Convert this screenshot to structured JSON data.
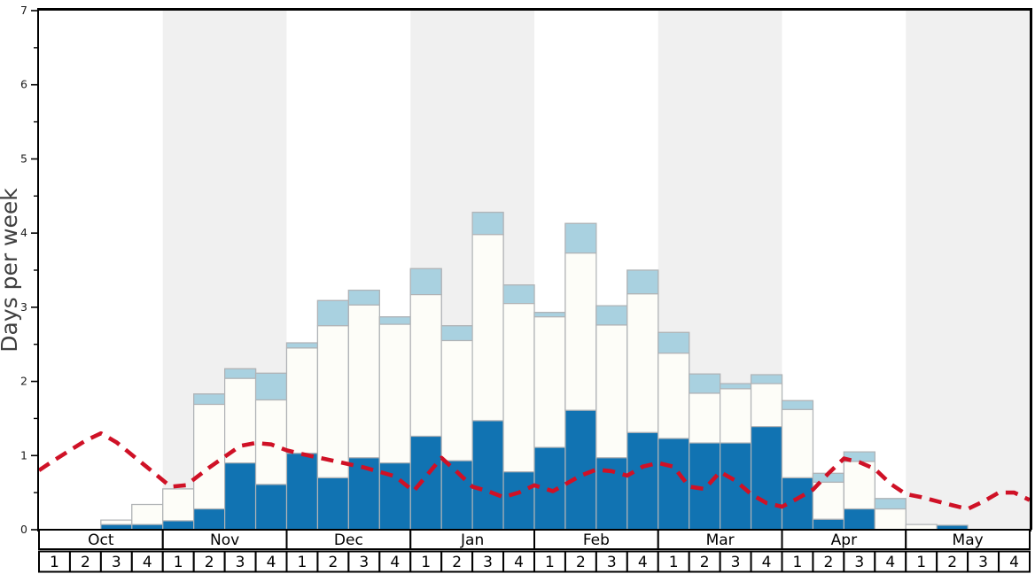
{
  "chart_data": {
    "type": "bar",
    "subtype": "stacked-weekly-bars-with-dashed-line",
    "title": "",
    "ylabel": "Days per week",
    "ylim": [
      0,
      7
    ],
    "y_major_ticks": [
      0,
      1,
      2,
      3,
      4,
      5,
      6,
      7
    ],
    "y_minor_tick_step": 0.5,
    "grid": "off",
    "legend": "none",
    "months": [
      "Oct",
      "Nov",
      "Dec",
      "Jan",
      "Feb",
      "Mar",
      "Apr",
      "May"
    ],
    "week_labels": [
      "1",
      "2",
      "3",
      "4"
    ],
    "weeks_per_month": 4,
    "shaded_month_indices": [
      1,
      3,
      5,
      7
    ],
    "bars": {
      "note": "cumulative tops in days-per-week for each of 32 weeks (Oct w1 .. May w4)",
      "dark_blue_top": [
        0,
        0,
        0.07,
        0.07,
        0.12,
        0.28,
        0.9,
        0.61,
        1.03,
        0.7,
        0.97,
        0.9,
        1.26,
        0.93,
        1.47,
        0.78,
        1.11,
        1.61,
        0.97,
        1.31,
        1.23,
        1.17,
        1.17,
        1.39,
        0.7,
        0.14,
        0.28,
        0,
        0,
        0.06,
        0,
        0
      ],
      "white_top": [
        0,
        0,
        0.13,
        0.34,
        0.55,
        1.69,
        2.04,
        1.75,
        2.45,
        2.75,
        3.03,
        2.77,
        3.17,
        2.55,
        3.98,
        3.05,
        2.87,
        3.73,
        2.76,
        3.18,
        2.38,
        1.84,
        1.9,
        1.97,
        1.62,
        0.64,
        0.92,
        0.28,
        0.07,
        0.06,
        0,
        0
      ],
      "light_blue_top": [
        0,
        0,
        0.13,
        0.34,
        0.55,
        1.83,
        2.17,
        2.11,
        2.52,
        3.09,
        3.23,
        2.87,
        3.52,
        2.75,
        4.28,
        3.3,
        2.93,
        4.13,
        3.02,
        3.5,
        2.66,
        2.1,
        1.97,
        2.09,
        1.74,
        0.76,
        1.05,
        0.42,
        0.07,
        0.06,
        0,
        0
      ]
    },
    "line": {
      "style": "dashed",
      "points_week_value": [
        [
          0,
          0.8
        ],
        [
          0.5,
          0.94
        ],
        [
          1.5,
          1.2
        ],
        [
          2.0,
          1.3
        ],
        [
          2.5,
          1.18
        ],
        [
          3.5,
          0.84
        ],
        [
          4.25,
          0.58
        ],
        [
          4.75,
          0.6
        ],
        [
          5.5,
          0.84
        ],
        [
          6.5,
          1.13
        ],
        [
          7.0,
          1.17
        ],
        [
          7.5,
          1.15
        ],
        [
          8.0,
          1.07
        ],
        [
          8.5,
          1.02
        ],
        [
          9.5,
          0.93
        ],
        [
          10.5,
          0.84
        ],
        [
          11.5,
          0.72
        ],
        [
          12.1,
          0.52
        ],
        [
          13.0,
          0.97
        ],
        [
          13.5,
          0.78
        ],
        [
          14.0,
          0.58
        ],
        [
          14.5,
          0.52
        ],
        [
          15.0,
          0.44
        ],
        [
          15.5,
          0.5
        ],
        [
          16.0,
          0.6
        ],
        [
          16.6,
          0.52
        ],
        [
          17.5,
          0.73
        ],
        [
          18.0,
          0.81
        ],
        [
          18.5,
          0.79
        ],
        [
          19.0,
          0.73
        ],
        [
          19.5,
          0.85
        ],
        [
          20.0,
          0.9
        ],
        [
          20.5,
          0.85
        ],
        [
          21.0,
          0.58
        ],
        [
          21.5,
          0.55
        ],
        [
          22.0,
          0.78
        ],
        [
          22.5,
          0.66
        ],
        [
          23.0,
          0.48
        ],
        [
          23.5,
          0.36
        ],
        [
          24.0,
          0.31
        ],
        [
          24.5,
          0.42
        ],
        [
          25.0,
          0.54
        ],
        [
          25.5,
          0.76
        ],
        [
          26.0,
          0.96
        ],
        [
          26.5,
          0.91
        ],
        [
          27.0,
          0.82
        ],
        [
          27.5,
          0.62
        ],
        [
          28.0,
          0.48
        ],
        [
          28.5,
          0.44
        ],
        [
          29.5,
          0.33
        ],
        [
          30.0,
          0.28
        ],
        [
          30.5,
          0.38
        ],
        [
          31.0,
          0.5
        ],
        [
          31.5,
          0.5
        ],
        [
          32.0,
          0.4
        ]
      ]
    },
    "colors": {
      "dark_blue": "#1173b2",
      "white_bar": "#fdfdf8",
      "light_blue": "#a9d1e0",
      "band_gray": "#f0f0f0",
      "bar_border": "#b0b3b6",
      "line_red": "#cf1126",
      "axis_black": "#000000",
      "ylabel_gray": "#3f3f3f",
      "tick_label": "#1a1a1a"
    }
  }
}
